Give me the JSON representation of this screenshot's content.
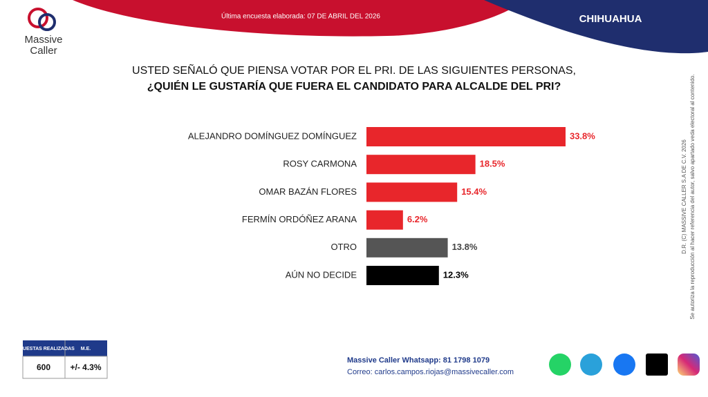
{
  "header": {
    "survey_date": "Última encuesta elaborada: 07 DE ABRIL DEL 2026",
    "region": "CHIHUAHUA",
    "logo_line1": "Massive",
    "logo_line2": "Caller"
  },
  "chart_data": {
    "type": "bar",
    "orientation": "horizontal",
    "title_line1": "USTED SEÑALÓ QUE PIENSA VOTAR POR EL PRI. DE LAS SIGUIENTES PERSONAS,",
    "title_line2": "¿QUIÉN LE GUSTARÍA QUE FUERA EL CANDIDATO PARA ALCALDE DEL PRI?",
    "categories": [
      "ALEJANDRO DOMÍNGUEZ DOMÍNGUEZ",
      "ROSY CARMONA",
      "OMAR BAZÁN FLORES",
      "FERMÍN ORDÓÑEZ ARANA",
      "OTRO",
      "AÚN NO DECIDE"
    ],
    "values": [
      33.8,
      18.5,
      15.4,
      6.2,
      13.8,
      12.3
    ],
    "value_labels": [
      "33.8%",
      "18.5%",
      "15.4%",
      "6.2%",
      "13.8%",
      "12.3%"
    ],
    "colors": [
      "#e8262b",
      "#e8262b",
      "#e8262b",
      "#e8262b",
      "#555555",
      "#000000"
    ],
    "value_label_colors": [
      "#e8262b",
      "#e8262b",
      "#e8262b",
      "#e8262b",
      "#444444",
      "#000000"
    ]
  },
  "side_note": {
    "line1": "D.R. (C) MASSIVE CALLER S.A DE C.V. 2026",
    "line2": "Se autoriza la reproducción al hacer referencia del autor, salvo apartado veda electoral al contenido."
  },
  "stats_table": {
    "headers": [
      "ENCUESTAS REALIZADAS",
      "M.E."
    ],
    "row": [
      600,
      "+/- 4.3%"
    ]
  },
  "footer": {
    "whatsapp": "Massive Caller Whatsapp: 81 1798 1079",
    "email": "Correo: carlos.campos.riojas@massivecaller.com"
  }
}
